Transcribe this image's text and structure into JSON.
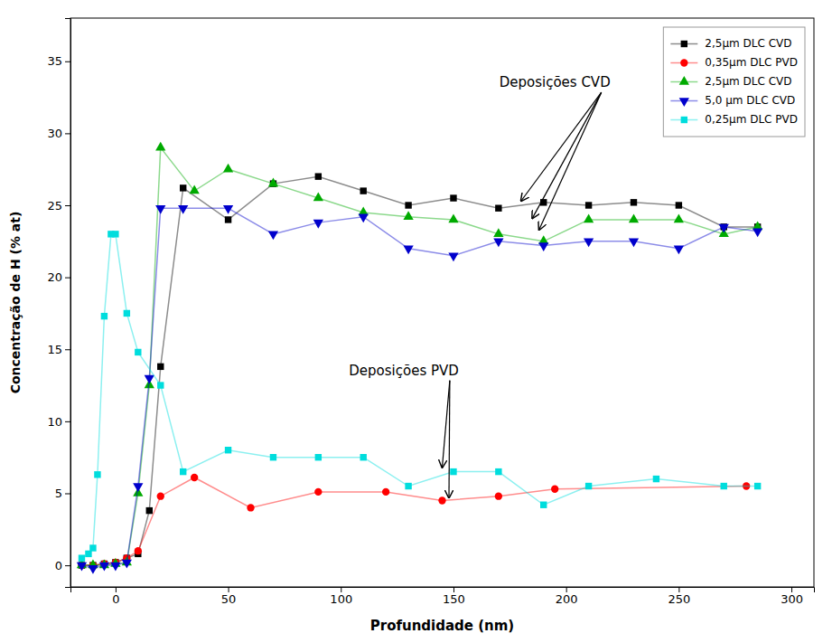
{
  "chart_data": {
    "type": "line",
    "xlabel": "Profundidade (nm)",
    "ylabel": "Concentração de H (% at)",
    "xlim": [
      -20,
      310
    ],
    "ylim": [
      -1.5,
      38
    ],
    "xticks": [
      0,
      50,
      100,
      150,
      200,
      250,
      300
    ],
    "yticks": [
      0,
      5,
      10,
      15,
      20,
      25,
      30,
      35
    ],
    "legend": "upper right",
    "series": [
      {
        "name": "2,5μm DLC CVD",
        "color": "black",
        "marker": "square",
        "x": [
          -15,
          -10,
          -5,
          0,
          5,
          10,
          15,
          20,
          30,
          50,
          70,
          90,
          110,
          130,
          150,
          170,
          190,
          210,
          230,
          250,
          270,
          285
        ],
        "values": [
          0.0,
          0.0,
          0.1,
          0.2,
          0.5,
          0.8,
          3.8,
          13.8,
          26.2,
          24.0,
          26.5,
          27.0,
          26.0,
          25.0,
          25.5,
          24.8,
          25.2,
          25.0,
          25.2,
          25.0,
          23.5,
          23.5
        ]
      },
      {
        "name": "0,35μm DLC PVD",
        "color": "red",
        "marker": "circle",
        "x": [
          -15,
          -10,
          -5,
          0,
          5,
          10,
          20,
          35,
          60,
          90,
          120,
          145,
          170,
          195,
          280
        ],
        "values": [
          0.0,
          0.0,
          0.1,
          0.2,
          0.5,
          1.0,
          4.8,
          6.1,
          4.0,
          5.1,
          5.1,
          4.5,
          4.8,
          5.3,
          5.5
        ]
      },
      {
        "name": "2,5μm DLC CVD",
        "color": "#00aa00",
        "marker": "triangle-up",
        "x": [
          -15,
          -10,
          -5,
          0,
          5,
          10,
          15,
          20,
          35,
          50,
          70,
          90,
          110,
          130,
          150,
          170,
          190,
          210,
          230,
          250,
          270,
          285
        ],
        "values": [
          0.0,
          0.0,
          0.0,
          0.1,
          0.2,
          5.0,
          12.5,
          29.0,
          26.0,
          27.5,
          26.5,
          25.5,
          24.5,
          24.2,
          24.0,
          23.0,
          22.5,
          24.0,
          24.0,
          24.0,
          23.0,
          23.5
        ]
      },
      {
        "name": "5,0 μm DLC CVD",
        "color": "#0000cc",
        "marker": "triangle-down",
        "x": [
          -15,
          -10,
          -5,
          0,
          5,
          10,
          15,
          20,
          30,
          50,
          70,
          90,
          110,
          130,
          150,
          170,
          190,
          210,
          230,
          250,
          270,
          285
        ],
        "values": [
          0.0,
          -0.2,
          0.0,
          0.0,
          0.2,
          5.5,
          13.0,
          24.8,
          24.8,
          24.8,
          23.0,
          23.8,
          24.2,
          22.0,
          21.5,
          22.5,
          22.2,
          22.5,
          22.5,
          22.0,
          23.5,
          23.2
        ]
      },
      {
        "name": "0,25μm DLC PVD",
        "color": "#00dddd",
        "marker": "square",
        "x": [
          -15,
          -12,
          -10,
          -8,
          -5,
          -2,
          0,
          5,
          10,
          20,
          30,
          50,
          70,
          90,
          110,
          130,
          150,
          170,
          190,
          210,
          240,
          270,
          285
        ],
        "values": [
          0.5,
          0.8,
          1.2,
          6.3,
          17.3,
          23.0,
          23.0,
          17.5,
          14.8,
          12.5,
          6.5,
          8.0,
          7.5,
          7.5,
          7.5,
          5.5,
          6.5,
          6.5,
          4.2,
          5.5,
          6.0,
          5.5,
          5.5
        ]
      }
    ],
    "annotations": [
      {
        "text": "Deposições CVD",
        "x": 195,
        "y": 33.5,
        "targets": [
          [
            180,
            25.3
          ],
          [
            185,
            24.1
          ],
          [
            188,
            23.3
          ]
        ]
      },
      {
        "text": "Deposições PVD",
        "x": 128,
        "y": 13.5,
        "targets": [
          [
            145,
            6.8
          ],
          [
            148,
            4.7
          ]
        ]
      }
    ]
  }
}
